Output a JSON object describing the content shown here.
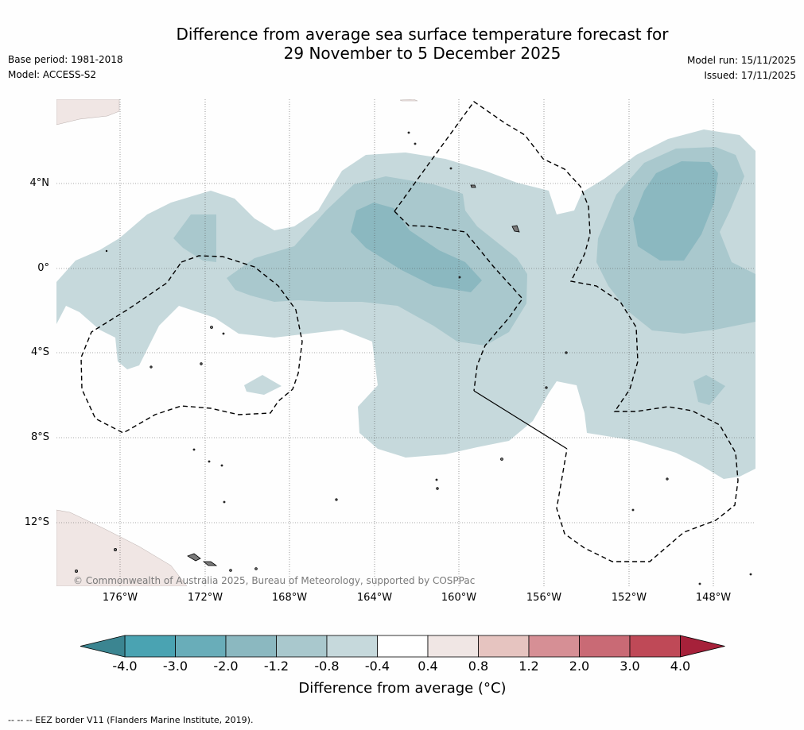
{
  "header": {
    "title_line1": "Difference from average sea surface temperature forecast for",
    "title_line2": "29 November to 5 December 2025",
    "base_period": "Base period: 1981-2018",
    "model": "Model: ACCESS-S2",
    "model_run": "Model run: 15/11/2025",
    "issued": "Issued: 17/11/2025"
  },
  "map": {
    "latitude_labels": [
      "4°N",
      "0°",
      "4°S",
      "8°S",
      "12°S"
    ],
    "longitude_labels": [
      "176°W",
      "172°W",
      "168°W",
      "164°W",
      "160°W",
      "156°W",
      "152°W",
      "148°W"
    ],
    "copyright": "© Commonwealth of Australia 2025, Bureau of Meteorology, supported by COSPPac",
    "colors": {
      "land": "#f0e6e4",
      "shade_minus_0_4": "#c6d9dc",
      "shade_minus_0_8": "#a9c8cd",
      "shade_minus_1_2": "#8bb8c0",
      "eez_border": "#000000"
    }
  },
  "colorbar": {
    "ticks": [
      "-4.0",
      "-3.0",
      "-2.0",
      "-1.2",
      "-0.8",
      "-0.4",
      "0.4",
      "0.8",
      "1.2",
      "2.0",
      "3.0",
      "4.0"
    ],
    "colors": [
      "#4aa3b2",
      "#69adb9",
      "#8bb8c0",
      "#a9c8cd",
      "#c6d9dc",
      "#ffffff",
      "#f0e6e4",
      "#e6c4c0",
      "#d68f95",
      "#c96a75",
      "#bf4957"
    ],
    "extend_low_color": "#3b8591",
    "extend_high_color": "#a6213a",
    "label": "Difference from average (°C)"
  },
  "footer": {
    "text": "--  --  -- EEZ border V11 (Flanders Marine Institute, 2019)."
  }
}
